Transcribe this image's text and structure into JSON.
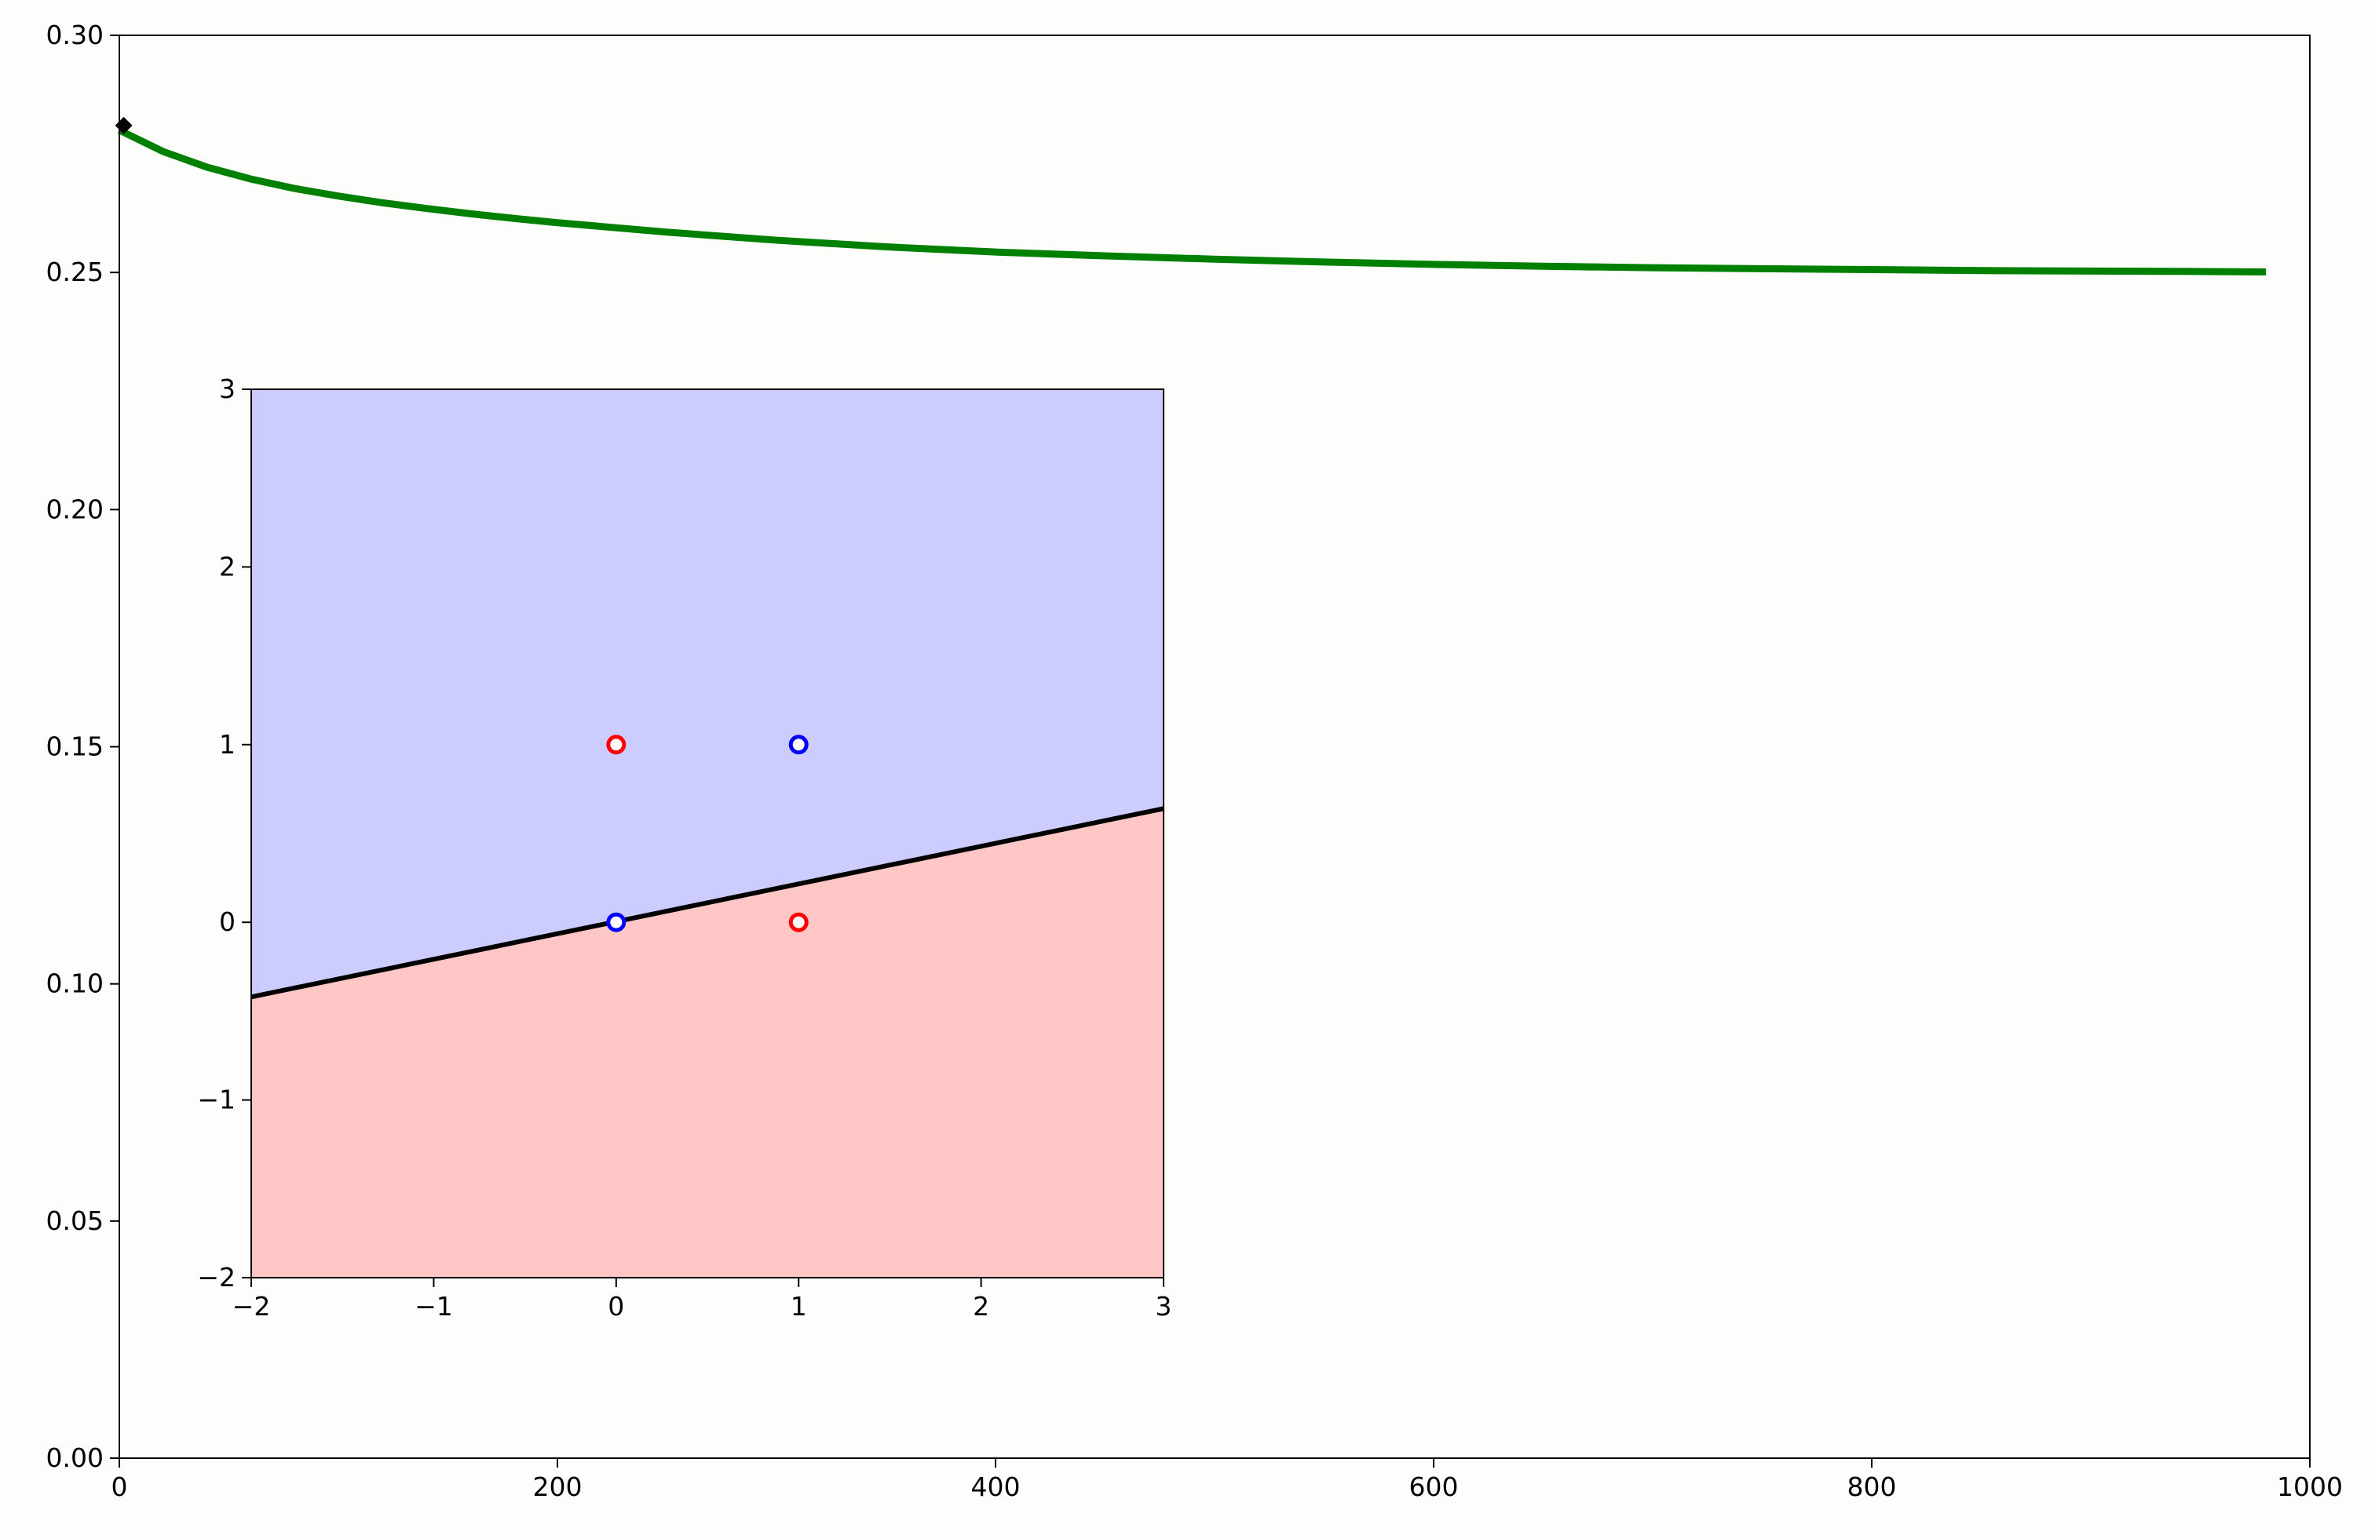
{
  "chart_data": [
    {
      "type": "line",
      "title": "",
      "xlabel": "",
      "ylabel": "",
      "xlim": [
        0,
        1000
      ],
      "ylim": [
        0.0,
        0.3
      ],
      "x_ticks": [
        0,
        200,
        400,
        600,
        800,
        1000
      ],
      "x_tick_labels": [
        "0",
        "200",
        "400",
        "600",
        "800",
        "1000"
      ],
      "y_ticks": [
        0.0,
        0.05,
        0.1,
        0.15,
        0.2,
        0.25,
        0.3
      ],
      "y_tick_labels": [
        "0.00",
        "0.05",
        "0.10",
        "0.15",
        "0.20",
        "0.25",
        "0.30"
      ],
      "grid": false,
      "series": [
        {
          "color": "#008000",
          "x": [
            0,
            20,
            40,
            60,
            80,
            100,
            120,
            140,
            160,
            180,
            200,
            250,
            300,
            350,
            400,
            450,
            500,
            550,
            600,
            650,
            700,
            750,
            800,
            850,
            900,
            950,
            980
          ],
          "y": [
            0.28,
            0.2755,
            0.2722,
            0.2697,
            0.2677,
            0.2661,
            0.2647,
            0.2635,
            0.2624,
            0.2614,
            0.2605,
            0.2585,
            0.2568,
            0.2554,
            0.2543,
            0.2535,
            0.2528,
            0.2522,
            0.2517,
            0.2513,
            0.251,
            0.2508,
            0.2506,
            0.2504,
            0.2503,
            0.2502,
            0.2501
          ]
        }
      ],
      "marker": {
        "x": 2,
        "y": 0.281,
        "shape": "diamond",
        "color": "#000000"
      }
    },
    {
      "type": "scatter",
      "title": "",
      "xlabel": "",
      "ylabel": "",
      "xlim": [
        -2,
        3
      ],
      "ylim": [
        -2,
        3
      ],
      "x_ticks": [
        -2,
        -1,
        0,
        1,
        2,
        3
      ],
      "x_tick_labels": [
        "−2",
        "−1",
        "0",
        "1",
        "2",
        "3"
      ],
      "y_ticks": [
        -2,
        -1,
        0,
        1,
        2,
        3
      ],
      "y_tick_labels": [
        "−2",
        "−1",
        "0",
        "1",
        "2",
        "3"
      ],
      "grid": false,
      "regions": {
        "above_color": "#ccccff",
        "below_color": "#ffc6c6"
      },
      "decision_line": {
        "x": [
          -2,
          3
        ],
        "y": [
          -0.42,
          0.64
        ],
        "color": "#000000"
      },
      "points": [
        {
          "x": 0,
          "y": 1,
          "color": "#ff0000"
        },
        {
          "x": 1,
          "y": 1,
          "color": "#0000ff"
        },
        {
          "x": 0,
          "y": 0,
          "color": "#0000ff"
        },
        {
          "x": 1,
          "y": 0,
          "color": "#ff0000"
        }
      ]
    }
  ]
}
